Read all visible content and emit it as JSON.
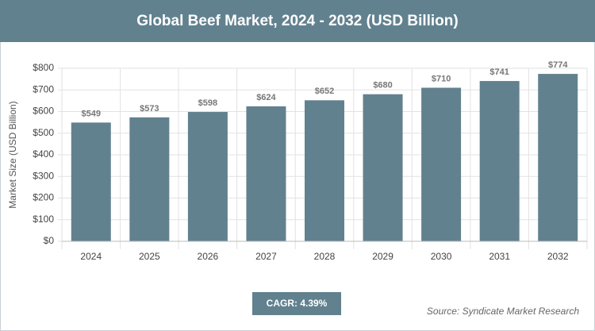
{
  "chart_data": {
    "type": "bar",
    "title": "Global Beef Market, 2024 - 2032 (USD Billion)",
    "y_label": "Market Size (USD Billion)",
    "categories": [
      "2024",
      "2025",
      "2026",
      "2027",
      "2028",
      "2029",
      "2030",
      "2031",
      "2032"
    ],
    "values": [
      549,
      573,
      598,
      624,
      652,
      680,
      710,
      741,
      774
    ],
    "value_labels": [
      "$549",
      "$573",
      "$598",
      "$624",
      "$652",
      "$680",
      "$710",
      "$741",
      "$774"
    ],
    "color": "#62818f",
    "ylim": [
      0,
      800
    ],
    "yticks": [
      {
        "value": 0,
        "label": "$0"
      },
      {
        "value": 100,
        "label": "$100"
      },
      {
        "value": 200,
        "label": "$200"
      },
      {
        "value": 300,
        "label": "$300"
      },
      {
        "value": 400,
        "label": "$400"
      },
      {
        "value": 500,
        "label": "$500"
      },
      {
        "value": 600,
        "label": "$600"
      },
      {
        "value": 700,
        "label": "$700"
      },
      {
        "value": 800,
        "label": "$800"
      }
    ],
    "grid": true,
    "cagr": "CAGR: 4.39%",
    "source": "Source: Syndicate Market Research"
  }
}
